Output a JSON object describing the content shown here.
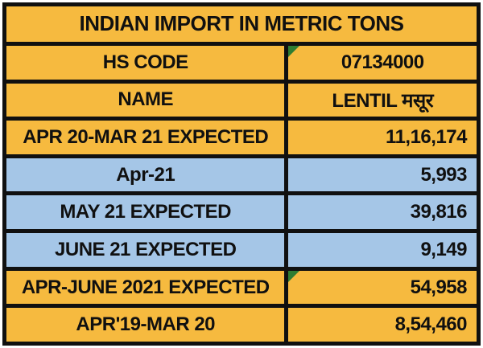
{
  "palette": {
    "gold": "#F6BA3F",
    "blue": "#A5C6E7",
    "border": "#101010",
    "text": "#101010",
    "indicator_green": "#2E7D32",
    "page_bg": "#FFFFFF"
  },
  "table": {
    "title": "INDIAN IMPORT IN METRIC TONS",
    "rows": [
      {
        "label": "HS CODE",
        "value": "07134000",
        "bg": "gold",
        "value_align": "center",
        "indicator": true
      },
      {
        "label": "NAME",
        "value": "LENTIL मसूर",
        "bg": "gold",
        "value_align": "center",
        "indicator": false
      },
      {
        "label": "APR 20-MAR 21 EXPECTED",
        "value": "11,16,174",
        "bg": "gold",
        "value_align": "right",
        "indicator": false
      },
      {
        "label": "Apr-21",
        "value": "5,993",
        "bg": "blue",
        "value_align": "right",
        "indicator": false
      },
      {
        "label": "MAY 21 EXPECTED",
        "value": "39,816",
        "bg": "blue",
        "value_align": "right",
        "indicator": false
      },
      {
        "label": "JUNE 21 EXPECTED",
        "value": "9,149",
        "bg": "blue",
        "value_align": "right",
        "indicator": false
      },
      {
        "label": "APR-JUNE 2021 EXPECTED",
        "value": "54,958",
        "bg": "gold",
        "value_align": "right",
        "indicator": true
      },
      {
        "label": "APR'19-MAR 20",
        "value": "8,54,460",
        "bg": "gold",
        "value_align": "right",
        "indicator": false
      }
    ]
  },
  "chart_data": {
    "type": "table",
    "title": "INDIAN IMPORT IN METRIC TONS",
    "columns": [
      "Field",
      "Value"
    ],
    "rows": [
      [
        "HS CODE",
        "07134000"
      ],
      [
        "NAME",
        "LENTIL मसूर"
      ],
      [
        "APR 20-MAR 21 EXPECTED",
        "11,16,174"
      ],
      [
        "Apr-21",
        "5,993"
      ],
      [
        "MAY 21 EXPECTED",
        "39,816"
      ],
      [
        "JUNE 21 EXPECTED",
        "9,149"
      ],
      [
        "APR-JUNE 2021 EXPECTED",
        "54,958"
      ],
      [
        "APR'19-MAR 20",
        "8,54,460"
      ]
    ],
    "notes": "Numbers use Indian digit grouping. Rows Apr-21, MAY 21 EXPECTED, JUNE 21 EXPECTED are blue; all other rows gold. Green corner indicators on the 07134000 and 54,958 cells."
  }
}
